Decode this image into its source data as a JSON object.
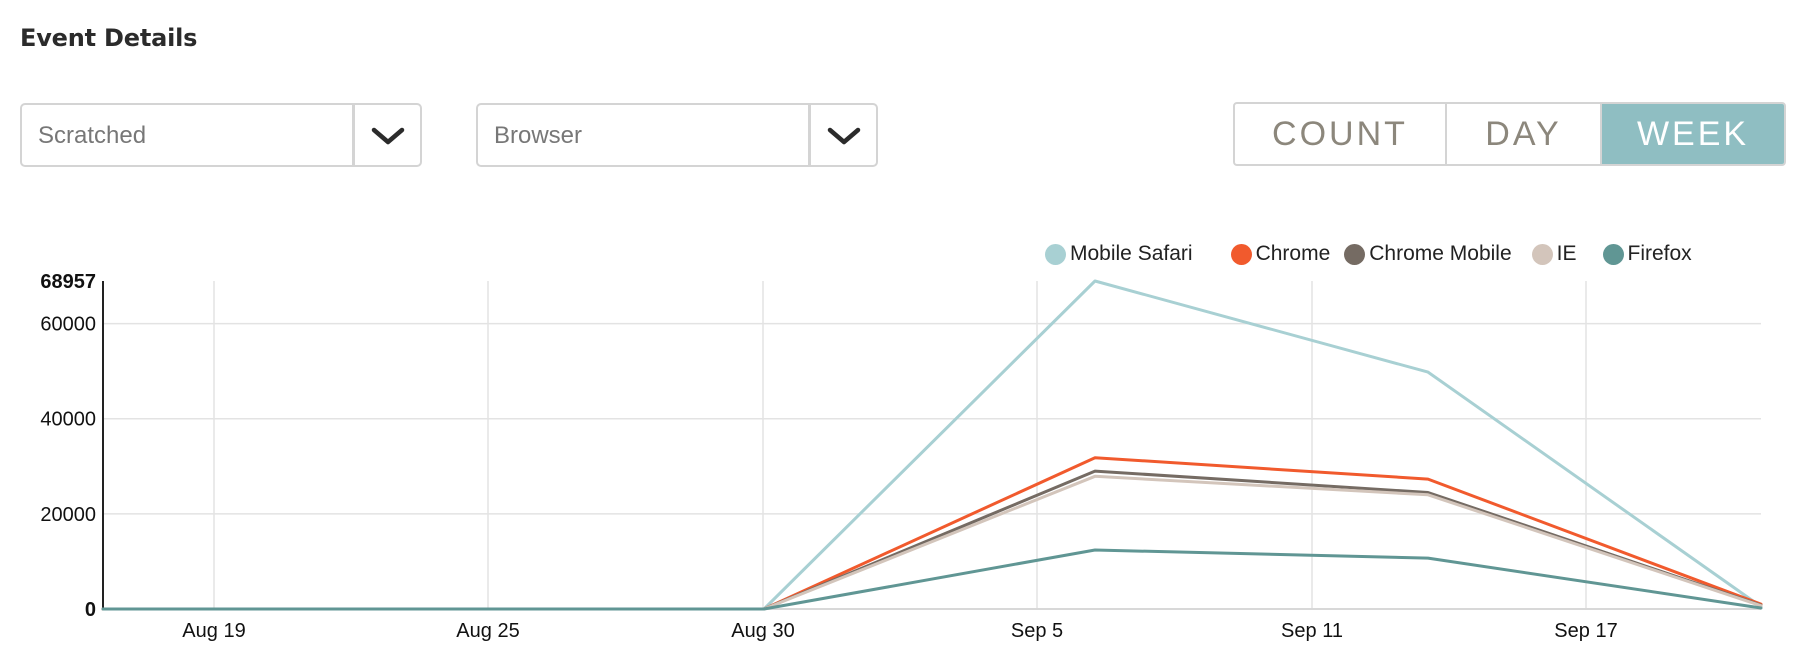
{
  "header": {
    "title": "Event Details"
  },
  "filters": {
    "event_select": {
      "value": "Scratched"
    },
    "group_select": {
      "value": "Browser"
    }
  },
  "view_toggle": {
    "options": [
      "COUNT",
      "DAY",
      "WEEK"
    ],
    "active": "WEEK"
  },
  "colors": {
    "accent": "#8fbec2",
    "mobile_safari": "#a8d0d3",
    "chrome": "#f15a2d",
    "chrome_mobile": "#756b63",
    "ie": "#d3c5bb",
    "firefox": "#609694"
  },
  "chart_data": {
    "type": "line",
    "title": "",
    "xlabel": "",
    "ylabel": "",
    "x": [
      "Aug 16",
      "Aug 23",
      "Aug 30",
      "Sep 6",
      "Sep 13",
      "Sep 20"
    ],
    "x_ticks": [
      "Aug 19",
      "Aug 25",
      "Aug 30",
      "Sep 5",
      "Sep 11",
      "Sep 17"
    ],
    "y_ticks": [
      0,
      20000,
      40000,
      60000,
      68957
    ],
    "ylim": [
      0,
      68957
    ],
    "grid": true,
    "legend_position": "top-right",
    "series": [
      {
        "name": "Mobile Safari",
        "color": "#a8d0d3",
        "values": [
          0,
          0,
          0,
          68957,
          49800,
          500
        ]
      },
      {
        "name": "Chrome",
        "color": "#f15a2d",
        "values": [
          0,
          0,
          0,
          31800,
          27300,
          1000
        ]
      },
      {
        "name": "Chrome Mobile",
        "color": "#756b63",
        "values": [
          0,
          0,
          0,
          29000,
          24500,
          800
        ]
      },
      {
        "name": "IE",
        "color": "#d3c5bb",
        "values": [
          0,
          0,
          0,
          27900,
          24000,
          700
        ]
      },
      {
        "name": "Firefox",
        "color": "#609694",
        "values": [
          0,
          0,
          0,
          12400,
          10700,
          200
        ]
      }
    ]
  }
}
